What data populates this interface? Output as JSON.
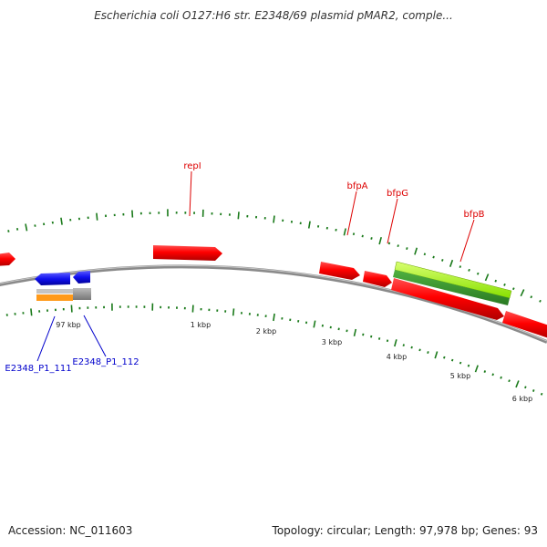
{
  "title": "Escherichia coli O127:H6 str. E2348/69 plasmid pMAR2, comple...",
  "footer": {
    "accession": "Accession: NC_011603",
    "summary": "Topology: circular; Length: 97,978 bp; Genes: 93"
  },
  "colors": {
    "forward_gene": "#ff0000",
    "reverse_gene": "#1010ee",
    "highlight_gene": "#88e000",
    "highlight_gene_dark": "#3a9a2a",
    "label_red": "#dd0000",
    "label_blue": "#0000cc",
    "tick": "#1a7a1a",
    "backbone": "#8a8a8a"
  },
  "gene_labels": [
    {
      "id": "repI",
      "text": "repI"
    },
    {
      "id": "bfpA",
      "text": "bfpA"
    },
    {
      "id": "bfpG",
      "text": "bfpG"
    },
    {
      "id": "bfpB",
      "text": "bfpB"
    },
    {
      "id": "E2348_P1_111",
      "text": "E2348_P1_111"
    },
    {
      "id": "E2348_P1_112",
      "text": "E2348_P1_112"
    }
  ],
  "scale_labels": [
    "97 kbp",
    "1 kbp",
    "2 kbp",
    "3 kbp",
    "4 kbp",
    "5 kbp",
    "6 kbp"
  ]
}
